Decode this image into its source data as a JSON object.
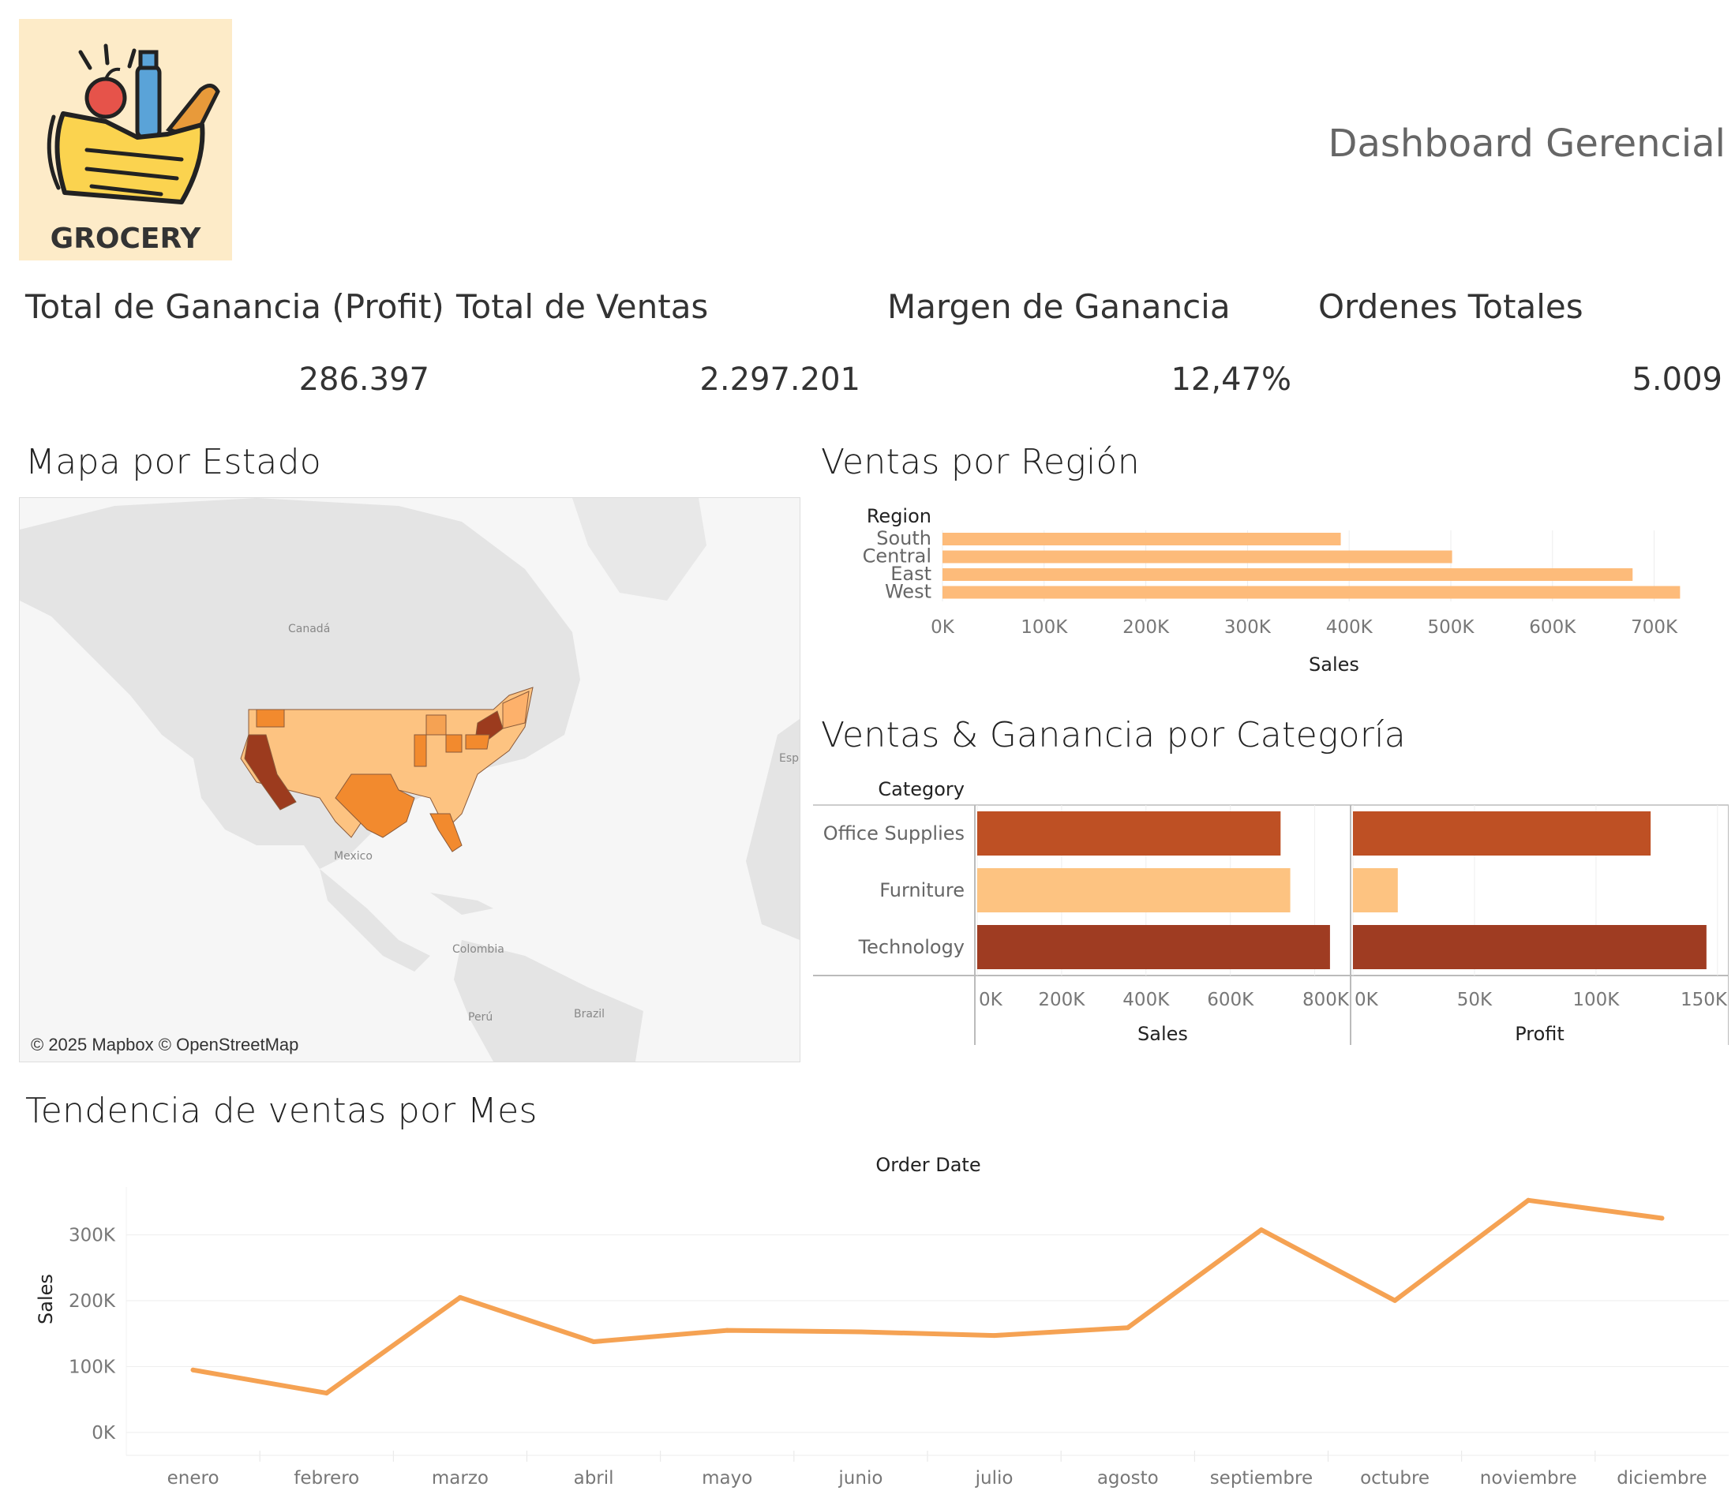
{
  "header": {
    "title": "Dashboard Gerencial",
    "logo_text": "GROCERY"
  },
  "kpis": [
    {
      "label": "Total de Ganancia (Profit)",
      "value": "286.397"
    },
    {
      "label": "Total de Ventas",
      "value": "2.297.201"
    },
    {
      "label": "Margen de Ganancia",
      "value": "12,47%"
    },
    {
      "label": "Ordenes Totales",
      "value": "5.009"
    }
  ],
  "map": {
    "title": "Mapa por Estado",
    "attribution": "© 2025 Mapbox © OpenStreetMap",
    "labels": {
      "canada": "Canadá",
      "mexico": "Mexico",
      "colombia": "Colombia",
      "peru": "Perú",
      "brazil": "Brazil",
      "esp": "Esp"
    },
    "colors": {
      "low": "#fdc381",
      "mid": "#f28a2e",
      "high": "#9c3b1e",
      "land": "#e6e6e6",
      "water": "#f6f6f6"
    }
  },
  "chart_data": [
    {
      "id": "region",
      "type": "bar",
      "orientation": "horizontal",
      "title": "Ventas por Región",
      "dimension_label": "Region",
      "xlabel": "Sales",
      "categories": [
        "South",
        "Central",
        "East",
        "West"
      ],
      "values": [
        391722,
        501240,
        678781,
        725458
      ],
      "xlim": [
        0,
        750000
      ],
      "ticks": [
        0,
        100000,
        200000,
        300000,
        400000,
        500000,
        600000,
        700000
      ],
      "tick_labels": [
        "0K",
        "100K",
        "200K",
        "300K",
        "400K",
        "500K",
        "600K",
        "700K"
      ],
      "color": "#fdbb7a"
    },
    {
      "id": "category",
      "type": "bar",
      "orientation": "horizontal",
      "title": "Ventas & Ganancia por Categoría",
      "dimension_label": "Category",
      "categories": [
        "Office Supplies",
        "Furniture",
        "Technology"
      ],
      "series": [
        {
          "name": "Sales",
          "values": [
            719047,
            741999,
            836154
          ],
          "xlim": [
            0,
            870000
          ],
          "ticks": [
            0,
            200000,
            400000,
            600000,
            800000
          ],
          "tick_labels": [
            "0K",
            "200K",
            "400K",
            "600K",
            "800K"
          ]
        },
        {
          "name": "Profit",
          "values": [
            122490,
            18451,
            145454
          ],
          "xlim": [
            0,
            152000
          ],
          "ticks": [
            0,
            50000,
            100000,
            150000
          ],
          "tick_labels": [
            "0K",
            "50K",
            "100K",
            "150K"
          ]
        }
      ],
      "colors": [
        "#be5024",
        "#fdc381",
        "#9f3c22"
      ]
    },
    {
      "id": "trend",
      "type": "line",
      "title": "Tendencia de ventas por Mes",
      "xlabel": "Order Date",
      "ylabel": "Sales",
      "categories": [
        "enero",
        "febrero",
        "marzo",
        "abril",
        "mayo",
        "junio",
        "julio",
        "agosto",
        "septiembre",
        "octubre",
        "noviembre",
        "diciembre"
      ],
      "values": [
        94925,
        59751,
        205005,
        137762,
        155029,
        152718,
        147238,
        159044,
        307650,
        200323,
        352461,
        325293
      ],
      "ylim": [
        -18000,
        375000
      ],
      "ticks": [
        0,
        100000,
        200000,
        300000
      ],
      "tick_labels": [
        "0K",
        "100K",
        "200K",
        "300K"
      ],
      "color": "#f5a253"
    }
  ]
}
